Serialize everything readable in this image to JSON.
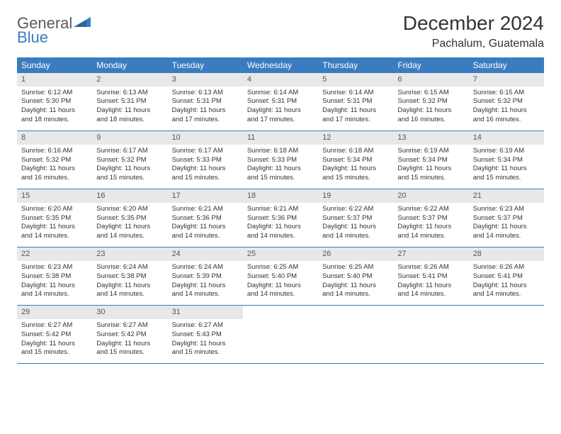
{
  "logo": {
    "word1": "General",
    "word2": "Blue"
  },
  "title": "December 2024",
  "location": "Pachalum, Guatemala",
  "colors": {
    "header_bg": "#3a7cbf",
    "header_fg": "#ffffff",
    "daynum_bg": "#e8e8e8",
    "row_border": "#3a7cbf",
    "logo_color": "#3a7cbf"
  },
  "weekdays": [
    "Sunday",
    "Monday",
    "Tuesday",
    "Wednesday",
    "Thursday",
    "Friday",
    "Saturday"
  ],
  "weeks": [
    [
      {
        "n": "1",
        "sr": "Sunrise: 6:12 AM",
        "ss": "Sunset: 5:30 PM",
        "dl": "Daylight: 11 hours and 18 minutes."
      },
      {
        "n": "2",
        "sr": "Sunrise: 6:13 AM",
        "ss": "Sunset: 5:31 PM",
        "dl": "Daylight: 11 hours and 18 minutes."
      },
      {
        "n": "3",
        "sr": "Sunrise: 6:13 AM",
        "ss": "Sunset: 5:31 PM",
        "dl": "Daylight: 11 hours and 17 minutes."
      },
      {
        "n": "4",
        "sr": "Sunrise: 6:14 AM",
        "ss": "Sunset: 5:31 PM",
        "dl": "Daylight: 11 hours and 17 minutes."
      },
      {
        "n": "5",
        "sr": "Sunrise: 6:14 AM",
        "ss": "Sunset: 5:31 PM",
        "dl": "Daylight: 11 hours and 17 minutes."
      },
      {
        "n": "6",
        "sr": "Sunrise: 6:15 AM",
        "ss": "Sunset: 5:32 PM",
        "dl": "Daylight: 11 hours and 16 minutes."
      },
      {
        "n": "7",
        "sr": "Sunrise: 6:15 AM",
        "ss": "Sunset: 5:32 PM",
        "dl": "Daylight: 11 hours and 16 minutes."
      }
    ],
    [
      {
        "n": "8",
        "sr": "Sunrise: 6:16 AM",
        "ss": "Sunset: 5:32 PM",
        "dl": "Daylight: 11 hours and 16 minutes."
      },
      {
        "n": "9",
        "sr": "Sunrise: 6:17 AM",
        "ss": "Sunset: 5:32 PM",
        "dl": "Daylight: 11 hours and 15 minutes."
      },
      {
        "n": "10",
        "sr": "Sunrise: 6:17 AM",
        "ss": "Sunset: 5:33 PM",
        "dl": "Daylight: 11 hours and 15 minutes."
      },
      {
        "n": "11",
        "sr": "Sunrise: 6:18 AM",
        "ss": "Sunset: 5:33 PM",
        "dl": "Daylight: 11 hours and 15 minutes."
      },
      {
        "n": "12",
        "sr": "Sunrise: 6:18 AM",
        "ss": "Sunset: 5:34 PM",
        "dl": "Daylight: 11 hours and 15 minutes."
      },
      {
        "n": "13",
        "sr": "Sunrise: 6:19 AM",
        "ss": "Sunset: 5:34 PM",
        "dl": "Daylight: 11 hours and 15 minutes."
      },
      {
        "n": "14",
        "sr": "Sunrise: 6:19 AM",
        "ss": "Sunset: 5:34 PM",
        "dl": "Daylight: 11 hours and 15 minutes."
      }
    ],
    [
      {
        "n": "15",
        "sr": "Sunrise: 6:20 AM",
        "ss": "Sunset: 5:35 PM",
        "dl": "Daylight: 11 hours and 14 minutes."
      },
      {
        "n": "16",
        "sr": "Sunrise: 6:20 AM",
        "ss": "Sunset: 5:35 PM",
        "dl": "Daylight: 11 hours and 14 minutes."
      },
      {
        "n": "17",
        "sr": "Sunrise: 6:21 AM",
        "ss": "Sunset: 5:36 PM",
        "dl": "Daylight: 11 hours and 14 minutes."
      },
      {
        "n": "18",
        "sr": "Sunrise: 6:21 AM",
        "ss": "Sunset: 5:36 PM",
        "dl": "Daylight: 11 hours and 14 minutes."
      },
      {
        "n": "19",
        "sr": "Sunrise: 6:22 AM",
        "ss": "Sunset: 5:37 PM",
        "dl": "Daylight: 11 hours and 14 minutes."
      },
      {
        "n": "20",
        "sr": "Sunrise: 6:22 AM",
        "ss": "Sunset: 5:37 PM",
        "dl": "Daylight: 11 hours and 14 minutes."
      },
      {
        "n": "21",
        "sr": "Sunrise: 6:23 AM",
        "ss": "Sunset: 5:37 PM",
        "dl": "Daylight: 11 hours and 14 minutes."
      }
    ],
    [
      {
        "n": "22",
        "sr": "Sunrise: 6:23 AM",
        "ss": "Sunset: 5:38 PM",
        "dl": "Daylight: 11 hours and 14 minutes."
      },
      {
        "n": "23",
        "sr": "Sunrise: 6:24 AM",
        "ss": "Sunset: 5:38 PM",
        "dl": "Daylight: 11 hours and 14 minutes."
      },
      {
        "n": "24",
        "sr": "Sunrise: 6:24 AM",
        "ss": "Sunset: 5:39 PM",
        "dl": "Daylight: 11 hours and 14 minutes."
      },
      {
        "n": "25",
        "sr": "Sunrise: 6:25 AM",
        "ss": "Sunset: 5:40 PM",
        "dl": "Daylight: 11 hours and 14 minutes."
      },
      {
        "n": "26",
        "sr": "Sunrise: 6:25 AM",
        "ss": "Sunset: 5:40 PM",
        "dl": "Daylight: 11 hours and 14 minutes."
      },
      {
        "n": "27",
        "sr": "Sunrise: 6:26 AM",
        "ss": "Sunset: 5:41 PM",
        "dl": "Daylight: 11 hours and 14 minutes."
      },
      {
        "n": "28",
        "sr": "Sunrise: 6:26 AM",
        "ss": "Sunset: 5:41 PM",
        "dl": "Daylight: 11 hours and 14 minutes."
      }
    ],
    [
      {
        "n": "29",
        "sr": "Sunrise: 6:27 AM",
        "ss": "Sunset: 5:42 PM",
        "dl": "Daylight: 11 hours and 15 minutes."
      },
      {
        "n": "30",
        "sr": "Sunrise: 6:27 AM",
        "ss": "Sunset: 5:42 PM",
        "dl": "Daylight: 11 hours and 15 minutes."
      },
      {
        "n": "31",
        "sr": "Sunrise: 6:27 AM",
        "ss": "Sunset: 5:43 PM",
        "dl": "Daylight: 11 hours and 15 minutes."
      },
      null,
      null,
      null,
      null
    ]
  ]
}
